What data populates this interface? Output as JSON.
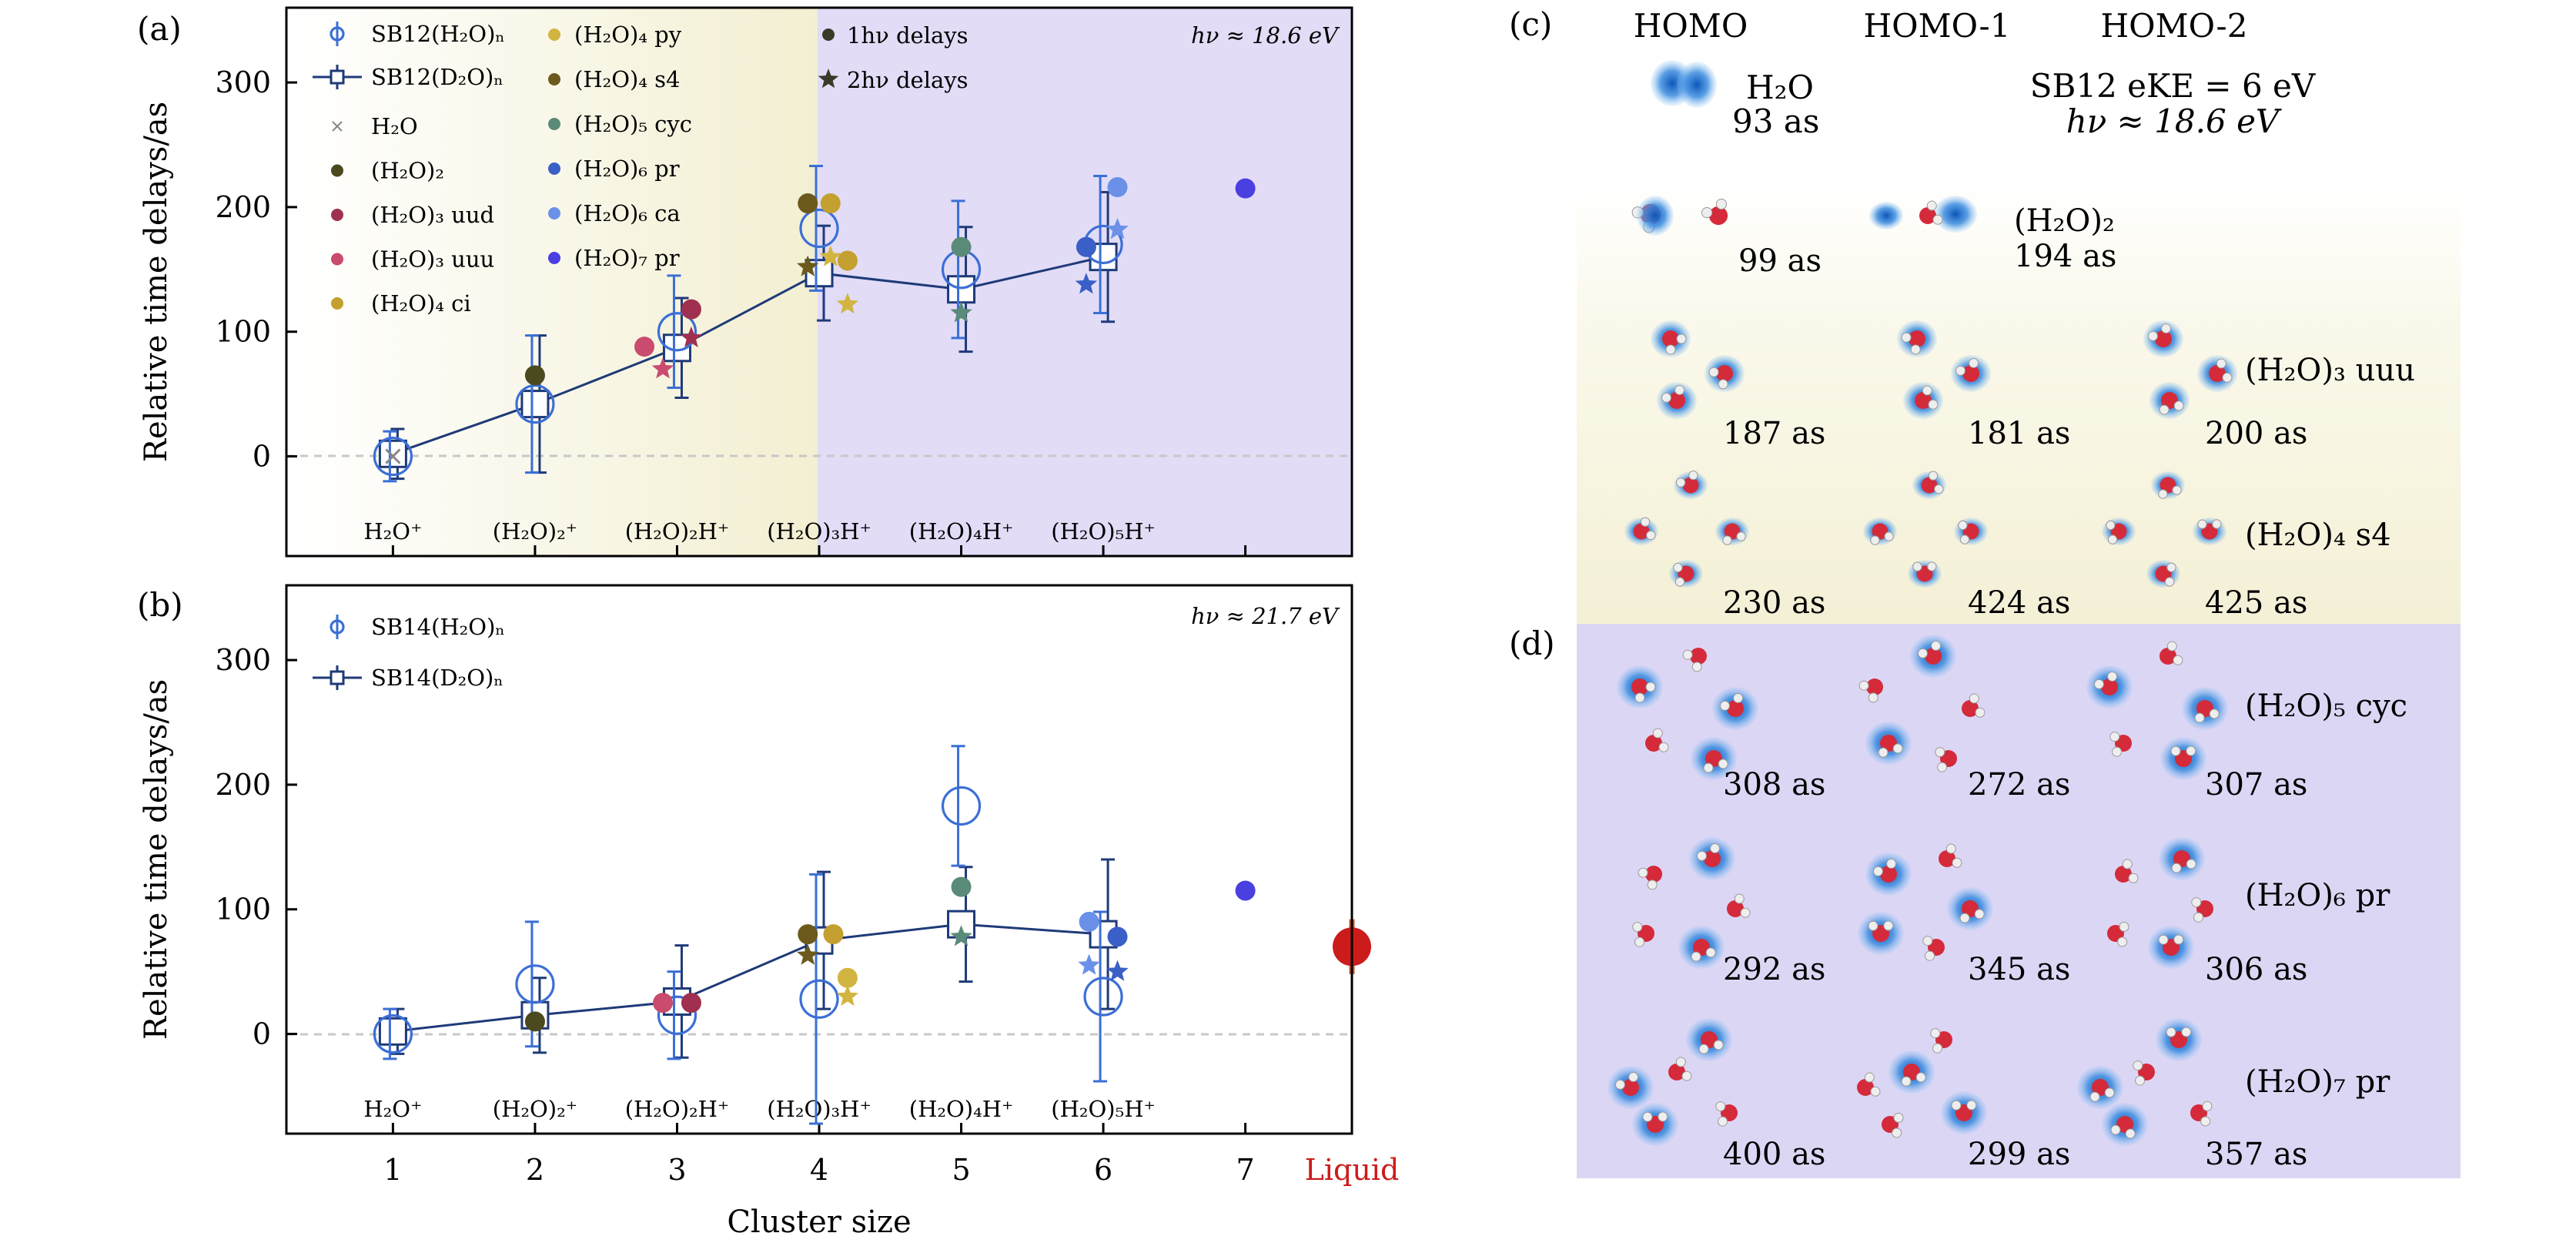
{
  "colors": {
    "sb_light": "#3b6fd6",
    "sb_dark": "#1f3a78",
    "gray": "#888888",
    "h2o2": "#4a4a1e",
    "uud": "#a03050",
    "uuu": "#c94b6e",
    "ci": "#c4a030",
    "py": "#d2b440",
    "s4": "#6b5a1c",
    "cyc": "#5a8a78",
    "pr6": "#3a5fc6",
    "ca6": "#6a90e8",
    "pr7": "#4a3fe0",
    "liquid": "#cc1b1b",
    "bg_yellow": "#f6f3dd",
    "bg_purple": "#e2dcf7",
    "panel_bg_d": "#dcd6f5",
    "panel_bg_c": "#f8f6e6"
  },
  "axes": {
    "xlabel": "Cluster size",
    "ylabel": "Relative time delays/as",
    "x_ticks": [
      "1",
      "2",
      "3",
      "4",
      "5",
      "6",
      "7",
      "Liquid"
    ],
    "y_ticks": [
      "0",
      "100",
      "200",
      "300"
    ],
    "cation_labels": [
      "H₂O⁺",
      "(H₂O)₂⁺",
      "(H₂O)₂H⁺",
      "(H₂O)₃H⁺",
      "(H₂O)₄H⁺",
      "(H₂O)₅H⁺"
    ]
  },
  "chart_data": [
    {
      "type": "scatter",
      "panel": "(a)",
      "annotation": "hν ≈ 18.6 eV",
      "xlabel": "Cluster size",
      "ylabel": "Relative time delays/as",
      "xlim": [
        0.25,
        7.75
      ],
      "ylim": [
        -80,
        360
      ],
      "legend": [
        "SB12(H₂O)ₙ",
        "SB12(D₂O)ₙ",
        "H₂O",
        "(H₂O)₂",
        "(H₂O)₃ uud",
        "(H₂O)₃ uuu",
        "(H₂O)₄ ci",
        "(H₂O)₄ py",
        "(H₂O)₄ s4",
        "(H₂O)₅ cyc",
        "(H₂O)₆ pr",
        "(H₂O)₆ ca",
        "(H₂O)₇ pr",
        "1hν delays",
        "2hν delays"
      ],
      "series": [
        {
          "name": "SB12(H₂O)ₙ",
          "marker": "circle",
          "x": [
            1,
            2,
            3,
            4,
            5,
            6
          ],
          "values": [
            0,
            42,
            100,
            183,
            150,
            170
          ],
          "err": [
            20,
            55,
            45,
            50,
            55,
            55
          ]
        },
        {
          "name": "SB12(D₂O)ₙ",
          "marker": "square-line",
          "x": [
            1,
            2,
            3,
            4,
            5,
            6
          ],
          "values": [
            2,
            42,
            87,
            147,
            134,
            160
          ],
          "err": [
            20,
            55,
            40,
            38,
            50,
            52
          ]
        },
        {
          "name": "1hν delays",
          "marker": "dot",
          "points": [
            {
              "x": 1,
              "y": 0,
              "c": "gray",
              "m": "x"
            },
            {
              "x": 2,
              "y": 65,
              "c": "h2o2"
            },
            {
              "x": 2.77,
              "y": 88,
              "c": "uuu"
            },
            {
              "x": 3.1,
              "y": 118,
              "c": "uud"
            },
            {
              "x": 3.92,
              "y": 203,
              "c": "s4"
            },
            {
              "x": 4.08,
              "y": 203,
              "c": "ci"
            },
            {
              "x": 4.2,
              "y": 157,
              "c": "ci"
            },
            {
              "x": 5,
              "y": 168,
              "c": "cyc"
            },
            {
              "x": 5.88,
              "y": 168,
              "c": "pr6"
            },
            {
              "x": 6.1,
              "y": 216,
              "c": "ca6"
            },
            {
              "x": 7,
              "y": 215,
              "c": "pr7"
            }
          ]
        },
        {
          "name": "2hν delays",
          "marker": "star",
          "points": [
            {
              "x": 2.9,
              "y": 70,
              "c": "uuu"
            },
            {
              "x": 3.1,
              "y": 95,
              "c": "uud"
            },
            {
              "x": 3.92,
              "y": 152,
              "c": "s4"
            },
            {
              "x": 4.08,
              "y": 160,
              "c": "py"
            },
            {
              "x": 4.2,
              "y": 122,
              "c": "py"
            },
            {
              "x": 5,
              "y": 115,
              "c": "cyc"
            },
            {
              "x": 5.88,
              "y": 138,
              "c": "pr6"
            },
            {
              "x": 6.1,
              "y": 182,
              "c": "ca6"
            }
          ]
        }
      ]
    },
    {
      "type": "scatter",
      "panel": "(b)",
      "annotation": "hν ≈ 21.7 eV",
      "xlabel": "Cluster size",
      "ylabel": "Relative time delays/as",
      "xlim": [
        0.25,
        7.75
      ],
      "ylim": [
        -80,
        360
      ],
      "legend": [
        "SB14(H₂O)ₙ",
        "SB14(D₂O)ₙ"
      ],
      "series": [
        {
          "name": "SB14(H₂O)ₙ",
          "marker": "circle",
          "x": [
            1,
            2,
            3,
            4,
            5,
            6
          ],
          "values": [
            0,
            40,
            15,
            28,
            183,
            30
          ],
          "err": [
            20,
            50,
            35,
            100,
            48,
            68
          ]
        },
        {
          "name": "SB14(D₂O)ₙ",
          "marker": "square-line",
          "x": [
            1,
            2,
            3,
            4,
            5,
            6
          ],
          "values": [
            2,
            15,
            26,
            75,
            88,
            80
          ],
          "err": [
            18,
            30,
            45,
            55,
            46,
            60
          ]
        },
        {
          "name": "1hν delays",
          "marker": "dot",
          "points": [
            {
              "x": 2,
              "y": 10,
              "c": "h2o2"
            },
            {
              "x": 2.9,
              "y": 25,
              "c": "uuu"
            },
            {
              "x": 3.1,
              "y": 25,
              "c": "uud"
            },
            {
              "x": 3.92,
              "y": 80,
              "c": "s4"
            },
            {
              "x": 4.1,
              "y": 80,
              "c": "ci"
            },
            {
              "x": 4.2,
              "y": 45,
              "c": "py"
            },
            {
              "x": 5,
              "y": 118,
              "c": "cyc"
            },
            {
              "x": 5.9,
              "y": 90,
              "c": "ca6"
            },
            {
              "x": 6.1,
              "y": 78,
              "c": "pr6"
            },
            {
              "x": 7,
              "y": 115,
              "c": "pr7"
            }
          ]
        },
        {
          "name": "2hν delays",
          "marker": "star",
          "points": [
            {
              "x": 3.92,
              "y": 63,
              "c": "s4"
            },
            {
              "x": 4.2,
              "y": 30,
              "c": "py"
            },
            {
              "x": 5,
              "y": 78,
              "c": "cyc"
            },
            {
              "x": 5.9,
              "y": 55,
              "c": "ca6"
            },
            {
              "x": 6.1,
              "y": 50,
              "c": "pr6"
            }
          ]
        },
        {
          "name": "Liquid",
          "marker": "dot",
          "points": [
            {
              "x": 7.75,
              "y": 70,
              "c": "liquid",
              "err": 22
            }
          ]
        }
      ]
    }
  ],
  "panel_c": {
    "label": "(c)",
    "headers": [
      "HOMO",
      "HOMO-1",
      "HOMO-2"
    ],
    "h2o_label": "H₂O",
    "h2o_delay": "93 as",
    "sb12_label": "SB12 eKE = 6 eV",
    "hv_label": "hν ≈ 18.6 eV",
    "rows": [
      {
        "name": "(H₂O)₂",
        "delays": [
          "99 as",
          "194 as"
        ]
      },
      {
        "name": "(H₂O)₃ uuu",
        "delays": [
          "187 as",
          "181 as",
          "200 as"
        ]
      },
      {
        "name": "(H₂O)₄ s4",
        "delays": [
          "230 as",
          "424 as",
          "425 as"
        ]
      }
    ]
  },
  "panel_d": {
    "label": "(d)",
    "rows": [
      {
        "name": "(H₂O)₅ cyc",
        "delays": [
          "308 as",
          "272 as",
          "307 as"
        ]
      },
      {
        "name": "(H₂O)₆ pr",
        "delays": [
          "292 as",
          "345 as",
          "306 as"
        ]
      },
      {
        "name": "(H₂O)₇ pr",
        "delays": [
          "400 as",
          "299 as",
          "357 as"
        ]
      }
    ]
  }
}
